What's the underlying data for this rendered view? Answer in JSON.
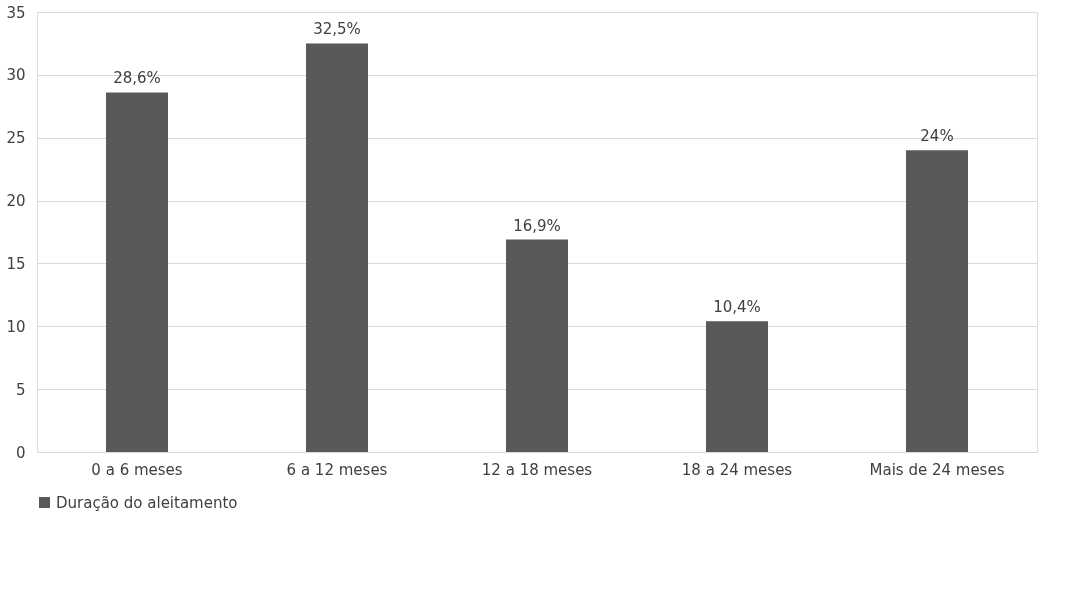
{
  "chart_data": {
    "type": "bar",
    "categories": [
      "0 a 6 meses",
      "6 a 12 meses",
      "12 a 18 meses",
      "18 a 24 meses",
      "Mais de 24 meses"
    ],
    "series": [
      {
        "name": "Duração do aleitamento",
        "color": "#595959",
        "values": [
          28.6,
          32.5,
          16.9,
          10.4,
          24
        ],
        "value_labels": [
          "28,6%",
          "32,5%",
          "16,9%",
          "10,4%",
          "24%"
        ]
      }
    ],
    "ylim": [
      0,
      35
    ],
    "yticks": [
      0,
      5,
      10,
      15,
      20,
      25,
      30,
      35
    ],
    "grid": "y",
    "legend": "bottom"
  }
}
